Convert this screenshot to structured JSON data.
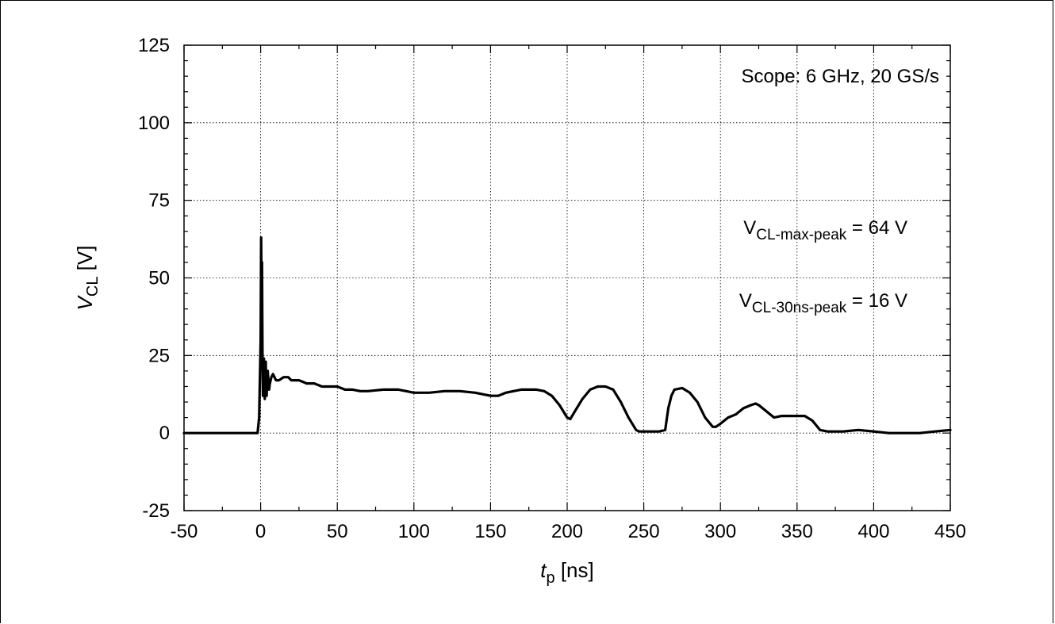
{
  "chart_data": {
    "type": "line",
    "xlabel": {
      "main": "t",
      "sub": "p",
      "unit": " [ns]"
    },
    "ylabel": {
      "main": "V",
      "sub": "CL",
      "unit": " [V]"
    },
    "xlim": [
      -50,
      450
    ],
    "ylim": [
      -25,
      125
    ],
    "xticks": [
      -50,
      0,
      50,
      100,
      150,
      200,
      250,
      300,
      350,
      400,
      450
    ],
    "yticks": [
      -25,
      0,
      25,
      50,
      75,
      100,
      125
    ],
    "grid": true,
    "annotations": [
      {
        "text": "Scope: 6 GHz, 20 GS/s"
      },
      {
        "main": "V",
        "sub": "CL-max-peak",
        "rest": " = 64 V"
      },
      {
        "main": "V",
        "sub": "CL-30ns-peak",
        "rest": " = 16 V"
      }
    ],
    "series": [
      {
        "color": "#000000",
        "x": [
          -50,
          -30,
          -10,
          -2,
          -1,
          0,
          0.3,
          0.6,
          0.9,
          1.2,
          1.5,
          1.8,
          2.1,
          2.4,
          2.7,
          3.0,
          3.3,
          3.6,
          3.9,
          4.2,
          4.6,
          5.0,
          5.5,
          6,
          7,
          8,
          9,
          10,
          12,
          15,
          18,
          20,
          25,
          30,
          35,
          40,
          45,
          50,
          55,
          60,
          65,
          70,
          80,
          90,
          100,
          110,
          120,
          130,
          140,
          150,
          155,
          160,
          165,
          170,
          175,
          180,
          185,
          190,
          195,
          200,
          202,
          205,
          210,
          215,
          220,
          225,
          230,
          235,
          240,
          245,
          247,
          250,
          255,
          260,
          264,
          266,
          268,
          270,
          275,
          280,
          285,
          290,
          295,
          297,
          300,
          305,
          310,
          315,
          320,
          323,
          325,
          330,
          335,
          340,
          345,
          350,
          355,
          360,
          365,
          370,
          380,
          390,
          400,
          410,
          420,
          430,
          440,
          450
        ],
        "y": [
          0,
          0,
          0,
          0,
          5,
          30,
          63,
          40,
          55,
          25,
          12,
          20,
          24,
          15,
          11,
          19,
          23,
          14,
          12,
          16,
          20,
          17,
          14,
          16,
          18,
          19,
          18,
          17,
          17,
          18,
          18,
          17,
          17,
          16,
          16,
          15,
          15,
          15,
          14,
          14,
          13.5,
          13.5,
          14,
          14,
          13,
          13,
          13.5,
          13.5,
          13,
          12,
          12,
          13,
          13.5,
          14,
          14,
          14,
          13.5,
          12,
          9,
          5,
          4.5,
          7,
          11,
          14,
          15,
          15,
          14,
          10,
          5,
          1,
          0.5,
          0.5,
          0.5,
          0.5,
          1,
          8,
          12,
          14,
          14.5,
          13,
          10,
          5,
          2,
          2,
          3,
          5,
          6,
          8,
          9,
          9.5,
          9,
          7,
          5,
          5.5,
          5.5,
          5.5,
          5.5,
          4,
          1,
          0.5,
          0.5,
          1,
          0.5,
          0,
          0,
          0,
          0.5,
          1
        ]
      }
    ]
  }
}
